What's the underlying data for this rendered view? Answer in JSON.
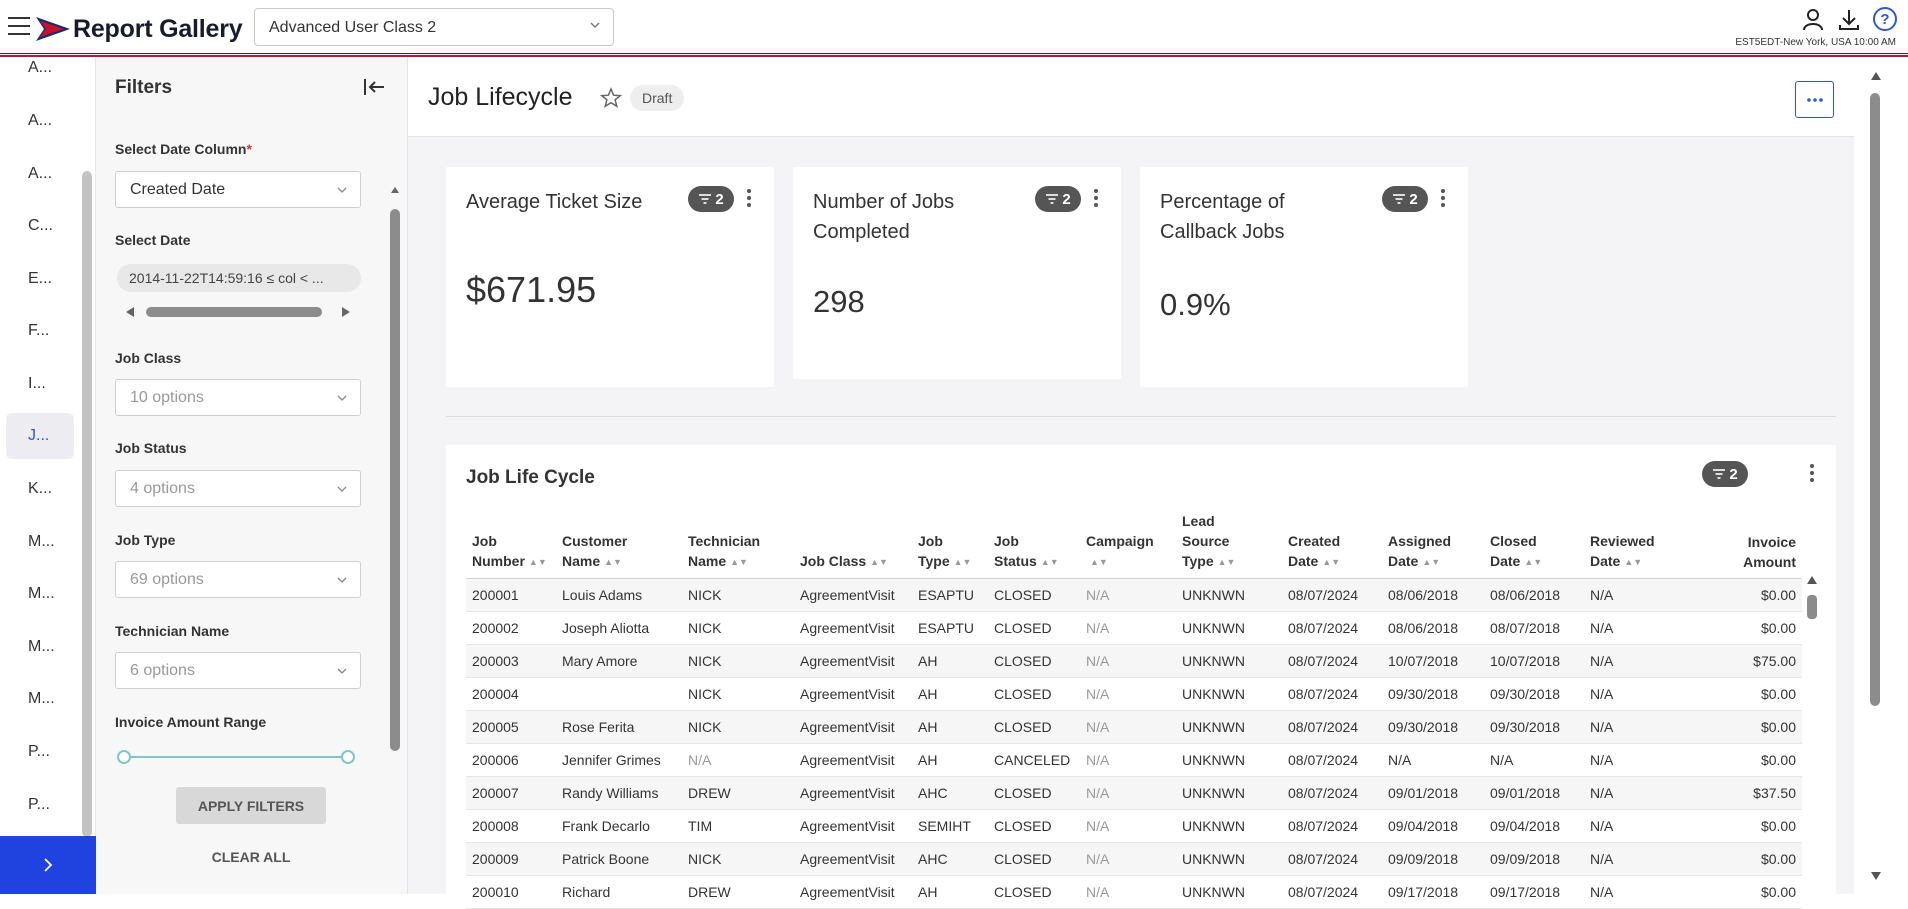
{
  "app": {
    "brand": "Report Gallery",
    "class_selector": "Advanced User Class 2",
    "timezone": "EST5EDT-New York, USA 10:00 AM",
    "icons": [
      "hamburger-icon",
      "user-icon",
      "download-icon",
      "help-icon"
    ]
  },
  "leftnav": {
    "items": [
      "A...",
      "A...",
      "A...",
      "C...",
      "E...",
      "F...",
      "I...",
      "J...",
      "K...",
      "M...",
      "M...",
      "M...",
      "M...",
      "P...",
      "P..."
    ],
    "active_index": 7
  },
  "filters": {
    "title": "Filters",
    "date_column_label": "Select Date Column",
    "date_column_value": "Created Date",
    "select_date_label": "Select Date",
    "select_date_value": "2014-11-22T14:59:16 ≤ col < ...",
    "job_class_label": "Job Class",
    "job_class_placeholder": "10 options",
    "job_status_label": "Job Status",
    "job_status_placeholder": "4 options",
    "job_type_label": "Job Type",
    "job_type_placeholder": "69 options",
    "technician_label": "Technician Name",
    "technician_placeholder": "6 options",
    "invoice_range_label": "Invoice Amount Range",
    "apply_label": "APPLY FILTERS",
    "clear_label": "CLEAR ALL"
  },
  "page": {
    "title": "Job Lifecycle",
    "status_badge": "Draft"
  },
  "kpis": [
    {
      "title": "Average Ticket Size",
      "value": "$671.95",
      "filters": "2"
    },
    {
      "title": "Number of Jobs Completed",
      "value": "298",
      "filters": "2"
    },
    {
      "title": "Percentage of Callback Jobs",
      "value": "0.9%",
      "filters": "2"
    }
  ],
  "table": {
    "title": "Job Life Cycle",
    "filters": "2",
    "columns": [
      [
        "Job",
        "Number"
      ],
      [
        "Customer",
        "Name"
      ],
      [
        "Technician",
        "Name"
      ],
      [
        "Job Class"
      ],
      [
        "Job",
        "Type"
      ],
      [
        "Job",
        "Status"
      ],
      [
        "Campaign"
      ],
      [
        "Lead",
        "Source",
        "Type"
      ],
      [
        "Created",
        "Date"
      ],
      [
        "Assigned",
        "Date"
      ],
      [
        "Closed",
        "Date"
      ],
      [
        "Reviewed",
        "Date"
      ],
      [
        "Invoice",
        "Amount"
      ]
    ],
    "rows": [
      [
        "200001",
        "Louis Adams",
        "NICK",
        "AgreementVisit",
        "ESAPTU",
        "CLOSED",
        "N/A",
        "UNKNWN",
        "08/07/2024",
        "08/06/2018",
        "08/06/2018",
        "N/A",
        "$0.00"
      ],
      [
        "200002",
        "Joseph Aliotta",
        "NICK",
        "AgreementVisit",
        "ESAPTU",
        "CLOSED",
        "N/A",
        "UNKNWN",
        "08/07/2024",
        "08/06/2018",
        "08/07/2018",
        "N/A",
        "$0.00"
      ],
      [
        "200003",
        "Mary Amore",
        "NICK",
        "AgreementVisit",
        "AH",
        "CLOSED",
        "N/A",
        "UNKNWN",
        "08/07/2024",
        "10/07/2018",
        "10/07/2018",
        "N/A",
        "$75.00"
      ],
      [
        "200004",
        "",
        "NICK",
        "AgreementVisit",
        "AH",
        "CLOSED",
        "N/A",
        "UNKNWN",
        "08/07/2024",
        "09/30/2018",
        "09/30/2018",
        "N/A",
        "$0.00"
      ],
      [
        "200005",
        "Rose Ferita",
        "NICK",
        "AgreementVisit",
        "AH",
        "CLOSED",
        "N/A",
        "UNKNWN",
        "08/07/2024",
        "09/30/2018",
        "09/30/2018",
        "N/A",
        "$0.00"
      ],
      [
        "200006",
        "Jennifer Grimes",
        "N/A",
        "AgreementVisit",
        "AH",
        "CANCELED",
        "N/A",
        "UNKNWN",
        "08/07/2024",
        "N/A",
        "N/A",
        "N/A",
        "$0.00"
      ],
      [
        "200007",
        "Randy Williams",
        "DREW",
        "AgreementVisit",
        "AHC",
        "CLOSED",
        "N/A",
        "UNKNWN",
        "08/07/2024",
        "09/01/2018",
        "09/01/2018",
        "N/A",
        "$37.50"
      ],
      [
        "200008",
        "Frank Decarlo",
        "TIM",
        "AgreementVisit",
        "SEMIHT",
        "CLOSED",
        "N/A",
        "UNKNWN",
        "08/07/2024",
        "09/04/2018",
        "09/04/2018",
        "N/A",
        "$0.00"
      ],
      [
        "200009",
        "Patrick Boone",
        "NICK",
        "AgreementVisit",
        "AHC",
        "CLOSED",
        "N/A",
        "UNKNWN",
        "08/07/2024",
        "09/09/2018",
        "09/09/2018",
        "N/A",
        "$0.00"
      ],
      [
        "200010",
        "Richard",
        "DREW",
        "AgreementVisit",
        "AH",
        "CLOSED",
        "N/A",
        "UNKNWN",
        "08/07/2024",
        "09/17/2018",
        "09/17/2018",
        "N/A",
        "$0.00"
      ]
    ]
  },
  "colors": {
    "accent": "#2f57d8",
    "nav_expand": "#2043e0",
    "badge": "#555555",
    "range": "#7fc7c6",
    "brand_red": "#c8102e",
    "brand_navy": "#1b2a6b"
  }
}
